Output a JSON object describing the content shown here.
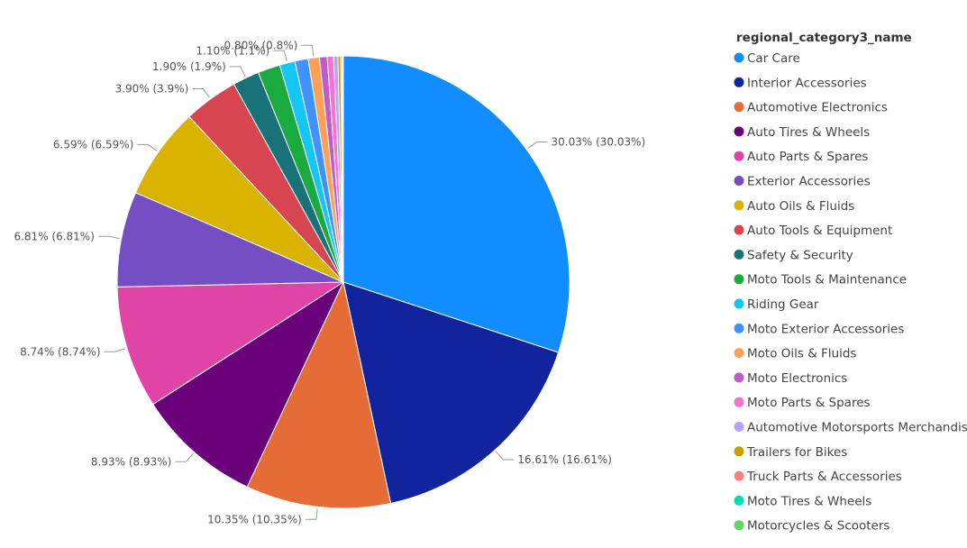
{
  "chart_data": {
    "type": "pie",
    "legend_title": "regional_category3_name",
    "legend_position": "right",
    "slices": [
      {
        "name": "Car Care",
        "value": 30.03,
        "label": "30.03% (30.03%)",
        "color": "#118DFF"
      },
      {
        "name": "Interior Accessories",
        "value": 16.61,
        "label": "16.61% (16.61%)",
        "color": "#12239E"
      },
      {
        "name": "Automotive Electronics",
        "value": 10.35,
        "label": "10.35% (10.35%)",
        "color": "#E66C37"
      },
      {
        "name": "Auto Tires & Wheels",
        "value": 8.93,
        "label": "8.93% (8.93%)",
        "color": "#6B007B"
      },
      {
        "name": "Auto Parts & Spares",
        "value": 8.74,
        "label": "8.74% (8.74%)",
        "color": "#E044A7"
      },
      {
        "name": "Exterior Accessories",
        "value": 6.81,
        "label": "6.81% (6.81%)",
        "color": "#744EC2"
      },
      {
        "name": "Auto Oils & Fluids",
        "value": 6.59,
        "label": "6.59% (6.59%)",
        "color": "#D9B300"
      },
      {
        "name": "Auto Tools & Equipment",
        "value": 3.9,
        "label": "3.90% (3.9%)",
        "color": "#D64550"
      },
      {
        "name": "Safety & Security",
        "value": 1.9,
        "label": "1.90% (1.9%)",
        "color": "#197278"
      },
      {
        "name": "Moto Tools & Maintenance",
        "value": 1.6,
        "label": "",
        "color": "#1AAB40"
      },
      {
        "name": "Riding Gear",
        "value": 1.1,
        "label": "1.10% (1.1%)",
        "color": "#15C6F4"
      },
      {
        "name": "Moto Exterior Accessories",
        "value": 0.95,
        "label": "",
        "color": "#4092FF"
      },
      {
        "name": "Moto Oils & Fluids",
        "value": 0.8,
        "label": "0.80% (0.8%)",
        "color": "#FFA058"
      },
      {
        "name": "Moto Electronics",
        "value": 0.55,
        "label": "",
        "color": "#BE5DC9"
      },
      {
        "name": "Moto Parts & Spares",
        "value": 0.45,
        "label": "",
        "color": "#F472D0"
      },
      {
        "name": "Automotive Motorsports Merchandise",
        "value": 0.3,
        "label": "",
        "color": "#B5A1FF"
      },
      {
        "name": "Trailers for Bikes",
        "value": 0.2,
        "label": "",
        "color": "#C4A200"
      },
      {
        "name": "Truck Parts & Accessories",
        "value": 0.1,
        "label": "",
        "color": "#FF8080"
      },
      {
        "name": "Moto Tires & Wheels",
        "value": 0.06,
        "label": "",
        "color": "#00DBBC"
      },
      {
        "name": "Motorcycles & Scooters",
        "value": 0.03,
        "label": "",
        "color": "#5BD667"
      }
    ]
  }
}
